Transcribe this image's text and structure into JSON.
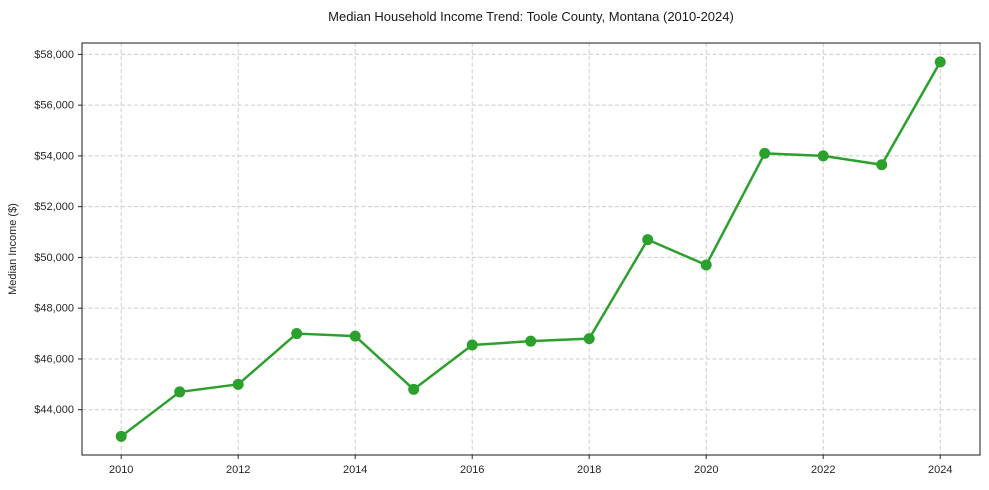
{
  "chart_data": {
    "type": "line",
    "title": "Median Household Income Trend: Toole County, Montana (2010-2024)",
    "xlabel": "",
    "ylabel": "Median Income ($)",
    "x": [
      2010,
      2011,
      2012,
      2013,
      2014,
      2015,
      2016,
      2017,
      2018,
      2019,
      2020,
      2021,
      2022,
      2023,
      2024
    ],
    "values": [
      42950,
      44700,
      45000,
      47000,
      46900,
      44800,
      46550,
      46700,
      46800,
      50700,
      49700,
      54100,
      54000,
      53650,
      57700
    ],
    "series_name": "Median household income",
    "xlim": [
      2009.33,
      2024.68
    ],
    "ylim": [
      42215,
      58449
    ],
    "x_ticks": [
      2010,
      2012,
      2014,
      2016,
      2018,
      2020,
      2022,
      2024
    ],
    "x_tick_labels": [
      "2010",
      "2012",
      "2014",
      "2016",
      "2018",
      "2020",
      "2022",
      "2024"
    ],
    "y_ticks": [
      44000,
      46000,
      48000,
      50000,
      52000,
      54000,
      56000,
      58000
    ],
    "y_tick_labels": [
      "$44,000",
      "$46,000",
      "$48,000",
      "$50,000",
      "$52,000",
      "$54,000",
      "$56,000",
      "$58,000"
    ],
    "grid": true,
    "grid_style": "dashed",
    "legend": false,
    "colors": {
      "line": "#2ca02c",
      "marker": "#2ca02c",
      "grid": "#cccccc",
      "spine": "#1a1a1a",
      "tick": "#262626",
      "background": "#ffffff"
    }
  }
}
